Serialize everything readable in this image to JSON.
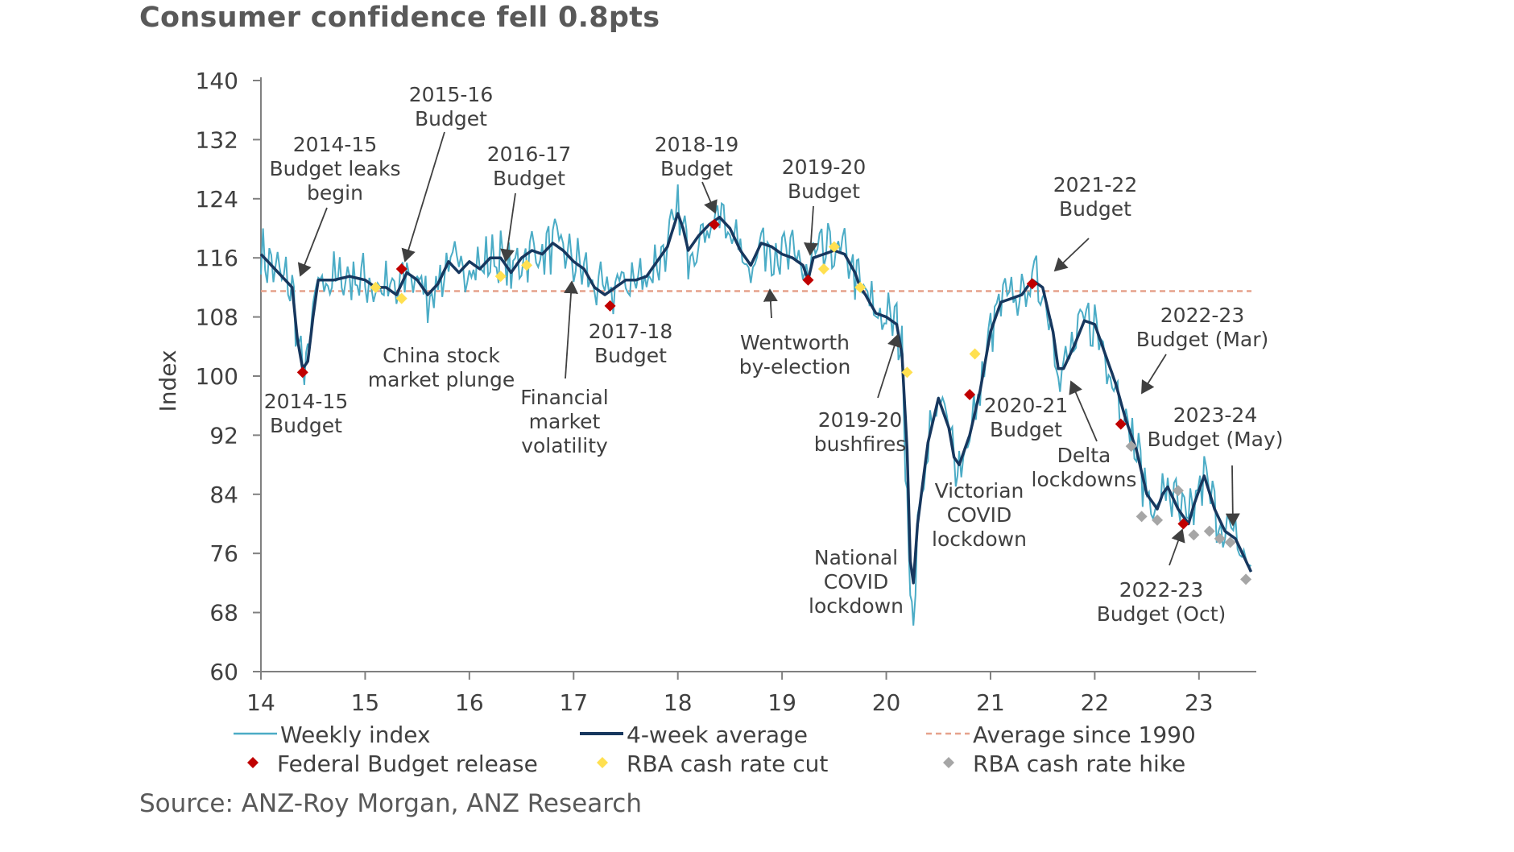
{
  "title": "Consumer confidence fell 0.8pts",
  "source": "Source: ANZ-Roy Morgan, ANZ Research",
  "chart_data": {
    "type": "line",
    "title": "Consumer confidence fell 0.8pts",
    "ylabel": "Index",
    "xlabel": "",
    "ylim": [
      60,
      140
    ],
    "xlim": [
      14,
      23.55
    ],
    "yticks": [
      60,
      68,
      76,
      84,
      92,
      100,
      108,
      116,
      124,
      132,
      140
    ],
    "xticks": [
      {
        "value": 14,
        "label": "14"
      },
      {
        "value": 15,
        "label": "15"
      },
      {
        "value": 16,
        "label": "16"
      },
      {
        "value": 17,
        "label": "17"
      },
      {
        "value": 18,
        "label": "18"
      },
      {
        "value": 19,
        "label": "19"
      },
      {
        "value": 20,
        "label": "20"
      },
      {
        "value": 21,
        "label": "21"
      },
      {
        "value": 22,
        "label": "22"
      },
      {
        "value": 23,
        "label": "23"
      }
    ],
    "grid": false,
    "legend_position": "bottom",
    "colors": {
      "weekly": "#4bacc6",
      "average4": "#17375e",
      "avg1990": "#e6a28c",
      "budget": "#c00000",
      "cut": "#ffe050",
      "hike": "#a6a6a6",
      "axis": "#808080",
      "text": "#404040"
    },
    "series": [
      {
        "name": "4-week average",
        "points": [
          [
            14.0,
            116.5
          ],
          [
            14.1,
            115.0
          ],
          [
            14.2,
            113.5
          ],
          [
            14.3,
            112.0
          ],
          [
            14.35,
            105.0
          ],
          [
            14.4,
            101.0
          ],
          [
            14.45,
            102.0
          ],
          [
            14.5,
            108.0
          ],
          [
            14.55,
            113.0
          ],
          [
            14.7,
            113.0
          ],
          [
            14.85,
            113.5
          ],
          [
            15.0,
            113.0
          ],
          [
            15.1,
            112.0
          ],
          [
            15.2,
            112.0
          ],
          [
            15.3,
            111.0
          ],
          [
            15.4,
            114.0
          ],
          [
            15.5,
            113.0
          ],
          [
            15.6,
            111.0
          ],
          [
            15.7,
            112.5
          ],
          [
            15.8,
            115.5
          ],
          [
            15.9,
            114.0
          ],
          [
            16.0,
            115.5
          ],
          [
            16.1,
            114.5
          ],
          [
            16.2,
            116.0
          ],
          [
            16.3,
            116.0
          ],
          [
            16.4,
            114.0
          ],
          [
            16.5,
            116.0
          ],
          [
            16.6,
            117.0
          ],
          [
            16.7,
            116.5
          ],
          [
            16.8,
            118.0
          ],
          [
            16.9,
            117.0
          ],
          [
            17.0,
            115.5
          ],
          [
            17.1,
            114.5
          ],
          [
            17.2,
            112.0
          ],
          [
            17.3,
            111.0
          ],
          [
            17.4,
            112.0
          ],
          [
            17.5,
            113.0
          ],
          [
            17.6,
            113.0
          ],
          [
            17.7,
            113.5
          ],
          [
            17.8,
            115.5
          ],
          [
            17.9,
            117.5
          ],
          [
            18.0,
            122.0
          ],
          [
            18.05,
            120.0
          ],
          [
            18.1,
            117.0
          ],
          [
            18.2,
            119.0
          ],
          [
            18.3,
            120.5
          ],
          [
            18.4,
            121.5
          ],
          [
            18.5,
            120.0
          ],
          [
            18.6,
            117.0
          ],
          [
            18.7,
            115.0
          ],
          [
            18.8,
            118.0
          ],
          [
            18.9,
            117.5
          ],
          [
            19.0,
            116.5
          ],
          [
            19.1,
            116.0
          ],
          [
            19.2,
            115.0
          ],
          [
            19.25,
            113.0
          ],
          [
            19.3,
            116.0
          ],
          [
            19.4,
            116.5
          ],
          [
            19.5,
            117.0
          ],
          [
            19.6,
            116.5
          ],
          [
            19.7,
            114.0
          ],
          [
            19.75,
            112.0
          ],
          [
            19.8,
            111.0
          ],
          [
            19.9,
            108.5
          ],
          [
            20.0,
            108.0
          ],
          [
            20.1,
            107.0
          ],
          [
            20.15,
            103.0
          ],
          [
            20.2,
            90.0
          ],
          [
            20.23,
            75.0
          ],
          [
            20.26,
            72.0
          ],
          [
            20.3,
            80.0
          ],
          [
            20.4,
            91.0
          ],
          [
            20.5,
            97.0
          ],
          [
            20.6,
            93.0
          ],
          [
            20.65,
            89.0
          ],
          [
            20.7,
            88.0
          ],
          [
            20.8,
            92.0
          ],
          [
            20.9,
            98.0
          ],
          [
            21.0,
            106.0
          ],
          [
            21.1,
            110.0
          ],
          [
            21.2,
            110.5
          ],
          [
            21.3,
            111.0
          ],
          [
            21.4,
            113.0
          ],
          [
            21.5,
            112.0
          ],
          [
            21.6,
            106.0
          ],
          [
            21.65,
            101.0
          ],
          [
            21.7,
            101.0
          ],
          [
            21.8,
            104.0
          ],
          [
            21.9,
            107.5
          ],
          [
            22.0,
            107.0
          ],
          [
            22.1,
            103.0
          ],
          [
            22.15,
            101.0
          ],
          [
            22.2,
            99.0
          ],
          [
            22.3,
            94.0
          ],
          [
            22.4,
            90.0
          ],
          [
            22.5,
            84.0
          ],
          [
            22.6,
            82.0
          ],
          [
            22.65,
            84.0
          ],
          [
            22.7,
            85.0
          ],
          [
            22.8,
            82.0
          ],
          [
            22.9,
            80.0
          ],
          [
            22.95,
            82.5
          ],
          [
            23.05,
            86.5
          ],
          [
            23.15,
            82.0
          ],
          [
            23.25,
            79.0
          ],
          [
            23.35,
            78.0
          ],
          [
            23.45,
            75.0
          ],
          [
            23.5,
            73.5
          ]
        ]
      }
    ],
    "average_since_1990": 111.5,
    "markers": {
      "budget": [
        [
          14.4,
          100.5
        ],
        [
          15.35,
          114.5
        ],
        [
          17.35,
          109.5
        ],
        [
          18.35,
          120.5
        ],
        [
          19.25,
          113.0
        ],
        [
          20.8,
          97.5
        ],
        [
          21.4,
          112.5
        ],
        [
          22.25,
          93.5
        ],
        [
          22.85,
          80.0
        ]
      ],
      "cut": [
        [
          15.1,
          112.0
        ],
        [
          15.35,
          110.5
        ],
        [
          16.3,
          113.5
        ],
        [
          16.55,
          115.0
        ],
        [
          19.4,
          114.5
        ],
        [
          19.5,
          117.5
        ],
        [
          19.75,
          112.0
        ],
        [
          20.2,
          100.5
        ],
        [
          20.85,
          103.0
        ]
      ],
      "hike": [
        [
          22.35,
          90.5
        ],
        [
          22.45,
          81.0
        ],
        [
          22.6,
          80.5
        ],
        [
          22.8,
          84.5
        ],
        [
          22.95,
          78.5
        ],
        [
          23.1,
          79.0
        ],
        [
          23.2,
          78.0
        ],
        [
          23.3,
          77.5
        ],
        [
          23.45,
          72.5
        ]
      ]
    },
    "legend": [
      {
        "key": "weekly",
        "label": "Weekly index"
      },
      {
        "key": "average4",
        "label": "4-week average"
      },
      {
        "key": "avg1990",
        "label": "Average since 1990"
      },
      {
        "key": "budget",
        "label": "Federal Budget release"
      },
      {
        "key": "cut",
        "label": "RBA cash rate cut"
      },
      {
        "key": "hike",
        "label": "RBA cash rate hike"
      }
    ],
    "annotations": [
      {
        "lines": [
          "2014-15",
          "Budget leaks",
          "begin"
        ]
      },
      {
        "lines": [
          "2015-16",
          "Budget"
        ]
      },
      {
        "lines": [
          "2016-17",
          "Budget"
        ]
      },
      {
        "lines": [
          "2018-19",
          "Budget"
        ]
      },
      {
        "lines": [
          "2019-20",
          "Budget"
        ]
      },
      {
        "lines": [
          "2021-22",
          "Budget"
        ]
      },
      {
        "lines": [
          "2014-15",
          "Budget"
        ]
      },
      {
        "lines": [
          "China stock",
          "market plunge"
        ]
      },
      {
        "lines": [
          "Financial",
          "market",
          "volatility"
        ]
      },
      {
        "lines": [
          "2017-18",
          "Budget"
        ]
      },
      {
        "lines": [
          "Wentworth",
          "by-election"
        ]
      },
      {
        "lines": [
          "2019-20",
          "bushfires"
        ]
      },
      {
        "lines": [
          "National",
          "COVID",
          "lockdown"
        ]
      },
      {
        "lines": [
          "Victorian",
          "COVID",
          "lockdown"
        ]
      },
      {
        "lines": [
          "2020-21",
          "Budget"
        ]
      },
      {
        "lines": [
          "Delta",
          "lockdowns"
        ]
      },
      {
        "lines": [
          "2022-23",
          "Budget (Mar)"
        ]
      },
      {
        "lines": [
          "2023-24",
          "Budget (May)"
        ]
      },
      {
        "lines": [
          "2022-23",
          "Budget (Oct)"
        ]
      }
    ]
  }
}
